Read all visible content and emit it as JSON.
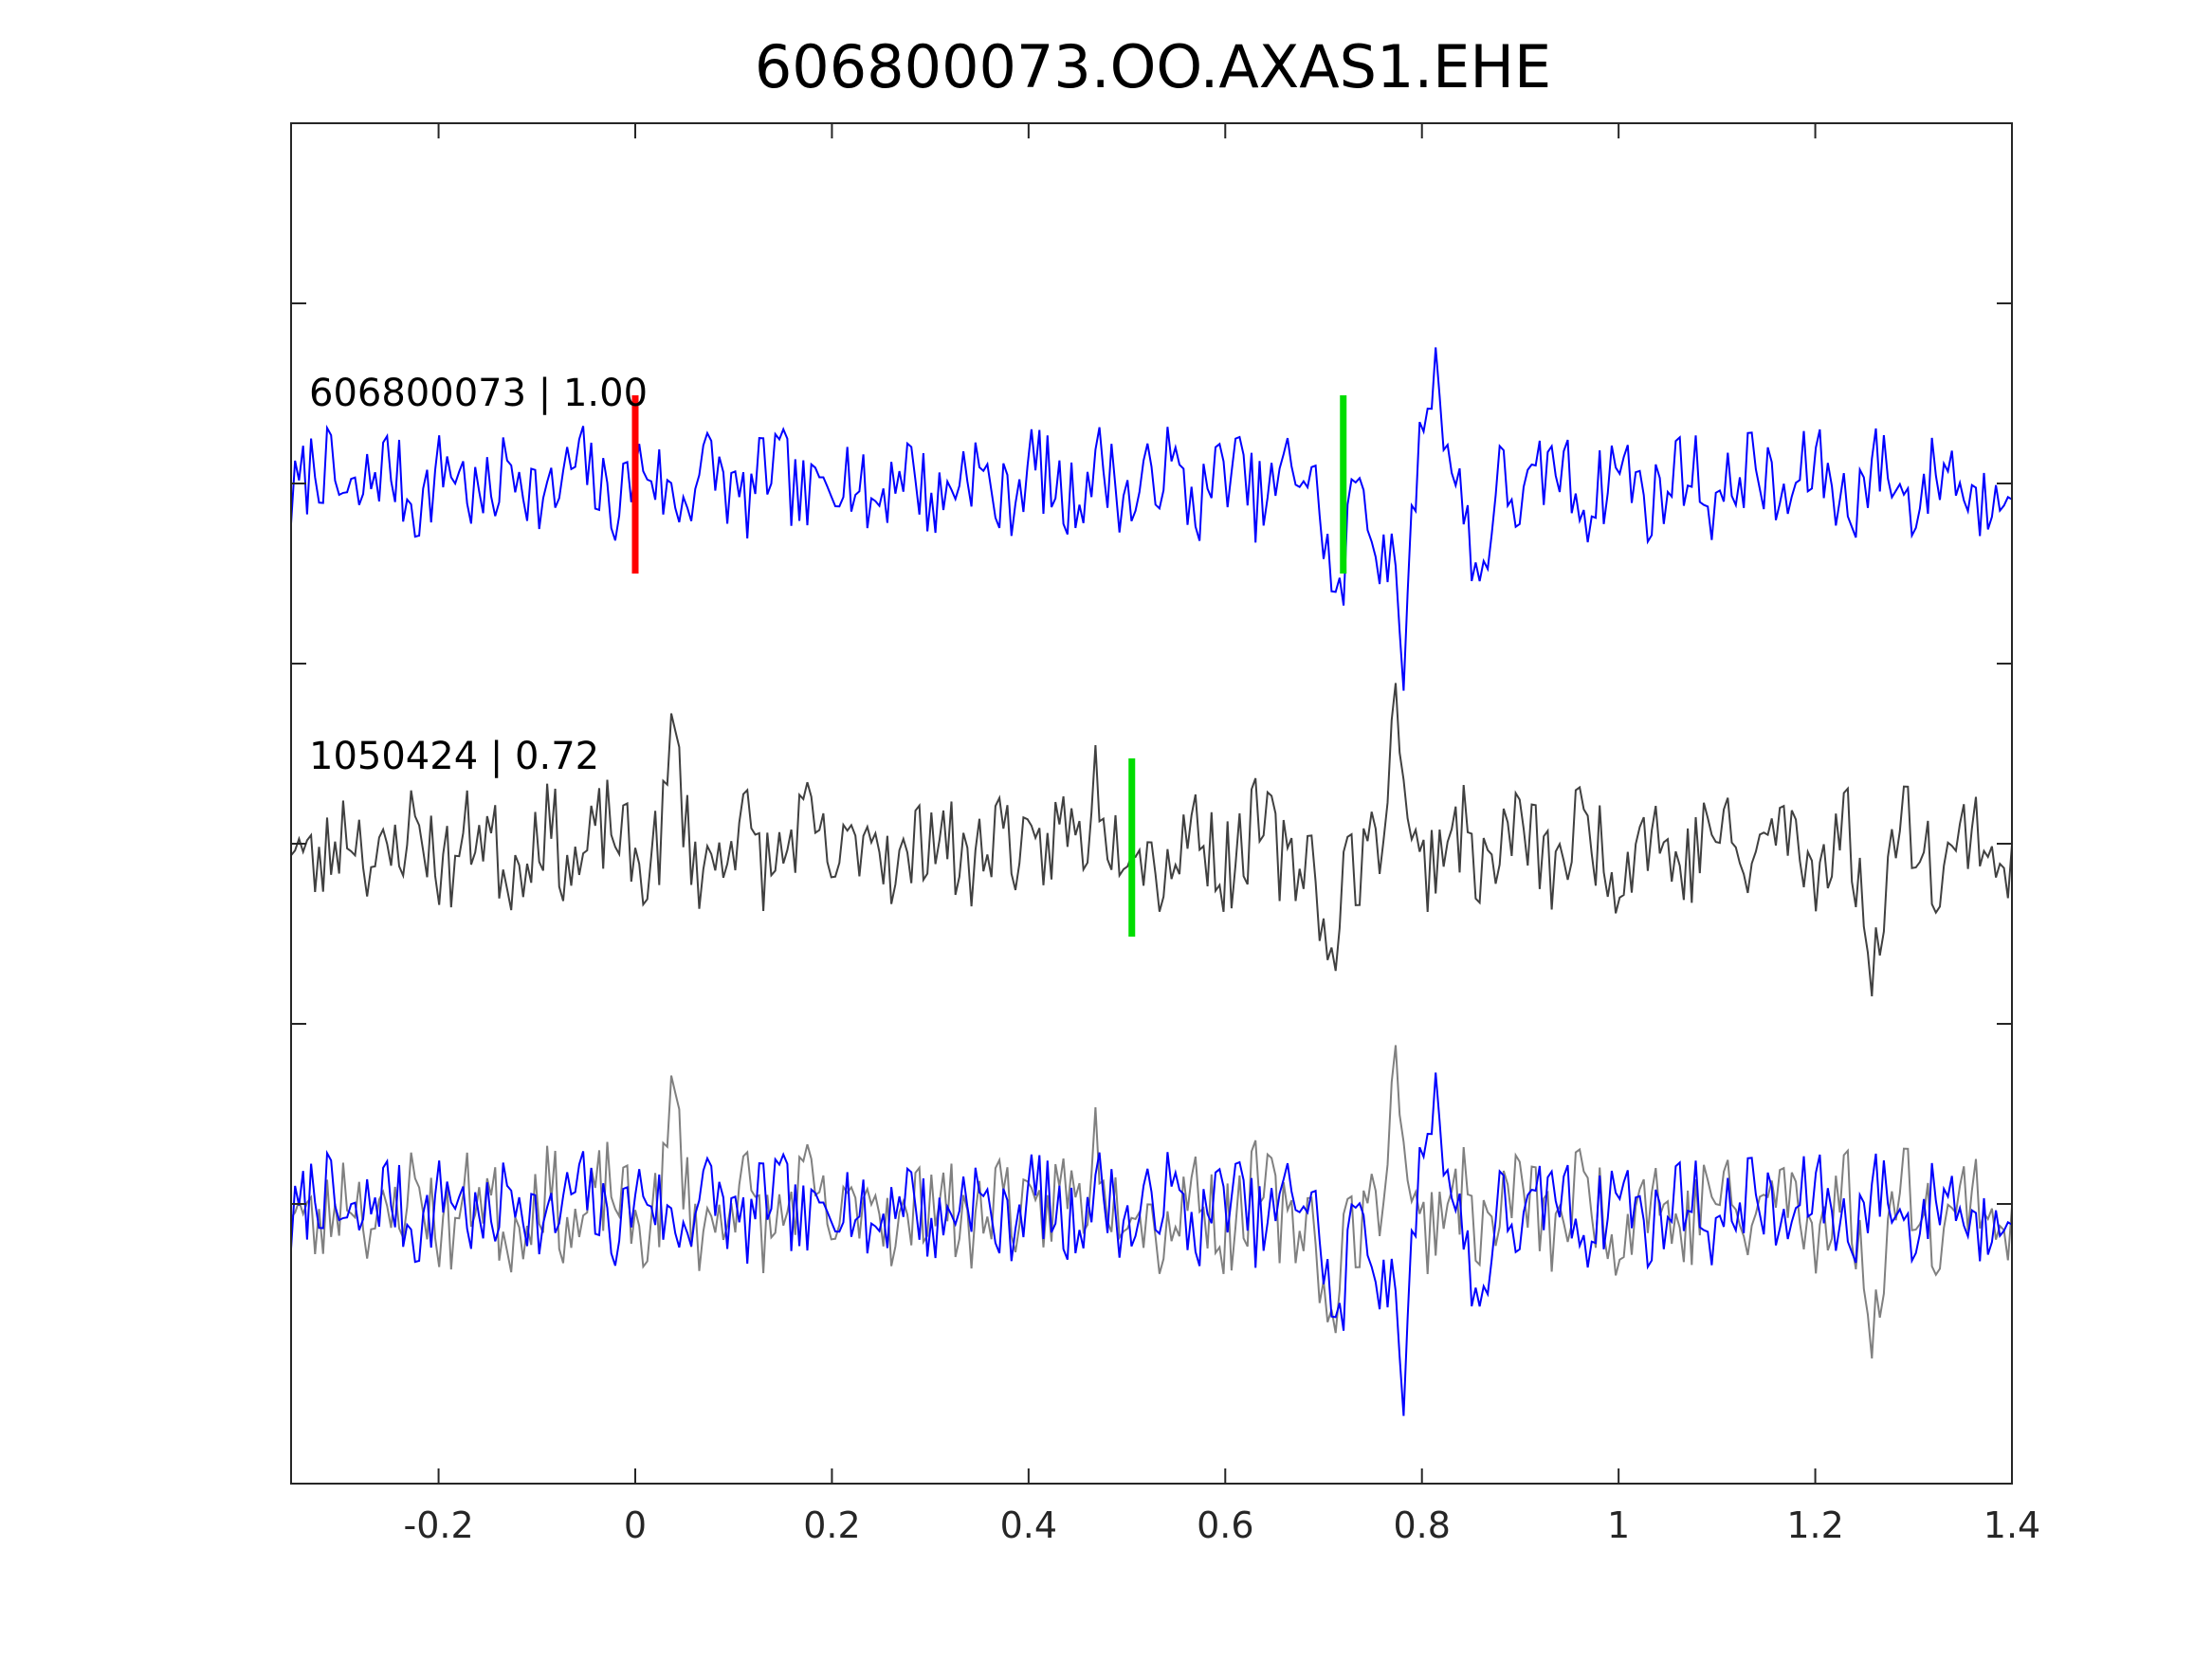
{
  "chart_data": {
    "type": "line",
    "title": "606800073.OO.AXAS1.EHE",
    "xlabel": "",
    "ylabel": "",
    "xlim": [
      -0.35,
      1.4
    ],
    "x_ticks": [
      -0.2,
      0,
      0.2,
      0.4,
      0.6,
      0.8,
      1,
      1.2,
      1.4
    ],
    "x_tick_labels": [
      "-0.2",
      "0",
      "0.2",
      "0.4",
      "0.6",
      "0.8",
      "1",
      "1.2",
      "1.4"
    ],
    "y_ticks_unlabeled": 6,
    "grid": false,
    "legend": "none",
    "colors": {
      "template": "#0000ff",
      "detection": "#404040",
      "detection_overlay": "#808080",
      "p_pick": "#ff0000",
      "s_pick": "#00dd00",
      "axes": "#262626"
    },
    "traces": [
      {
        "label": "606800073 | 1.00",
        "color": "#0000ff",
        "offset_slot": 3,
        "picks": [
          {
            "phase": "P",
            "time": 0.0,
            "color": "#ff0000"
          },
          {
            "phase": "S",
            "time": 0.72,
            "color": "#00dd00"
          }
        ],
        "events": [
          {
            "t": 0.715,
            "amp": -3.2,
            "w": 0.012
          },
          {
            "t": 0.78,
            "amp": -4.5,
            "w": 0.01
          },
          {
            "t": 0.815,
            "amp": 2.8,
            "w": 0.015
          },
          {
            "t": 0.86,
            "amp": -3.0,
            "w": 0.012
          },
          {
            "t": 0.755,
            "amp": -2.0,
            "w": 0.01
          }
        ],
        "noise_amp": 1.2,
        "seed": 7
      },
      {
        "label": "1050424 | 0.72",
        "color": "#404040",
        "offset_slot": 1,
        "picks": [
          {
            "phase": "S",
            "time": 0.505,
            "color": "#00dd00"
          }
        ],
        "events": [
          {
            "t": 0.705,
            "amp": -4.2,
            "w": 0.01
          },
          {
            "t": 0.775,
            "amp": 3.5,
            "w": 0.01
          },
          {
            "t": 0.47,
            "amp": 2.6,
            "w": 0.01
          },
          {
            "t": 0.04,
            "amp": 2.6,
            "w": 0.008
          },
          {
            "t": 1.255,
            "amp": -2.8,
            "w": 0.012
          }
        ],
        "noise_amp": 1.35,
        "seed": 23
      }
    ]
  }
}
